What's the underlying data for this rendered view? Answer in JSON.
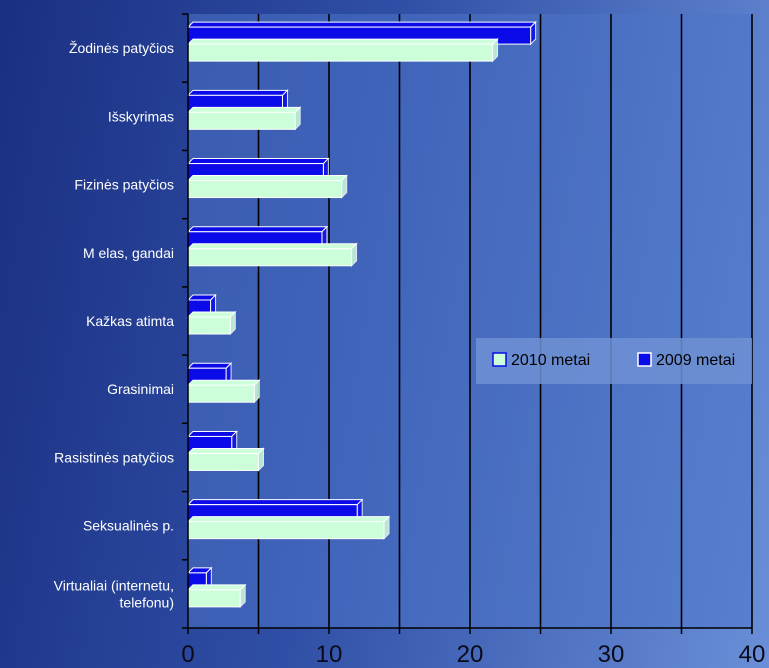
{
  "chart_data": {
    "type": "bar",
    "orientation": "horizontal",
    "categories": [
      "Žodinės patyčios",
      "Išskyrimas",
      "Fizinės patyčios",
      "M elas, gandai",
      "Kažkas atimta",
      "Grasinimai",
      "Rasistinės patyčios",
      "Seksualinės p.",
      "Virtualiai (internetu, telefonu)"
    ],
    "series": [
      {
        "name": "2009 metai",
        "values": [
          24.3,
          6.7,
          9.6,
          9.5,
          1.6,
          2.7,
          3.1,
          12.0,
          1.3
        ],
        "color": "#0b0bea"
      },
      {
        "name": "2010 metai",
        "values": [
          21.6,
          7.6,
          10.9,
          11.6,
          3.0,
          4.7,
          5.0,
          13.9,
          3.7
        ],
        "color": "#ccffd9"
      }
    ],
    "xlim": [
      0,
      40
    ],
    "xticks": [
      "0",
      "10",
      "20",
      "30",
      "40"
    ],
    "grid": true,
    "legend": {
      "placement": "center-right",
      "entries": [
        "2010 metai",
        "2009 metai"
      ]
    },
    "colors": {
      "plot_background": "#4d74c8",
      "gridline": "#000000",
      "bar_outline": "#ffffff"
    }
  }
}
